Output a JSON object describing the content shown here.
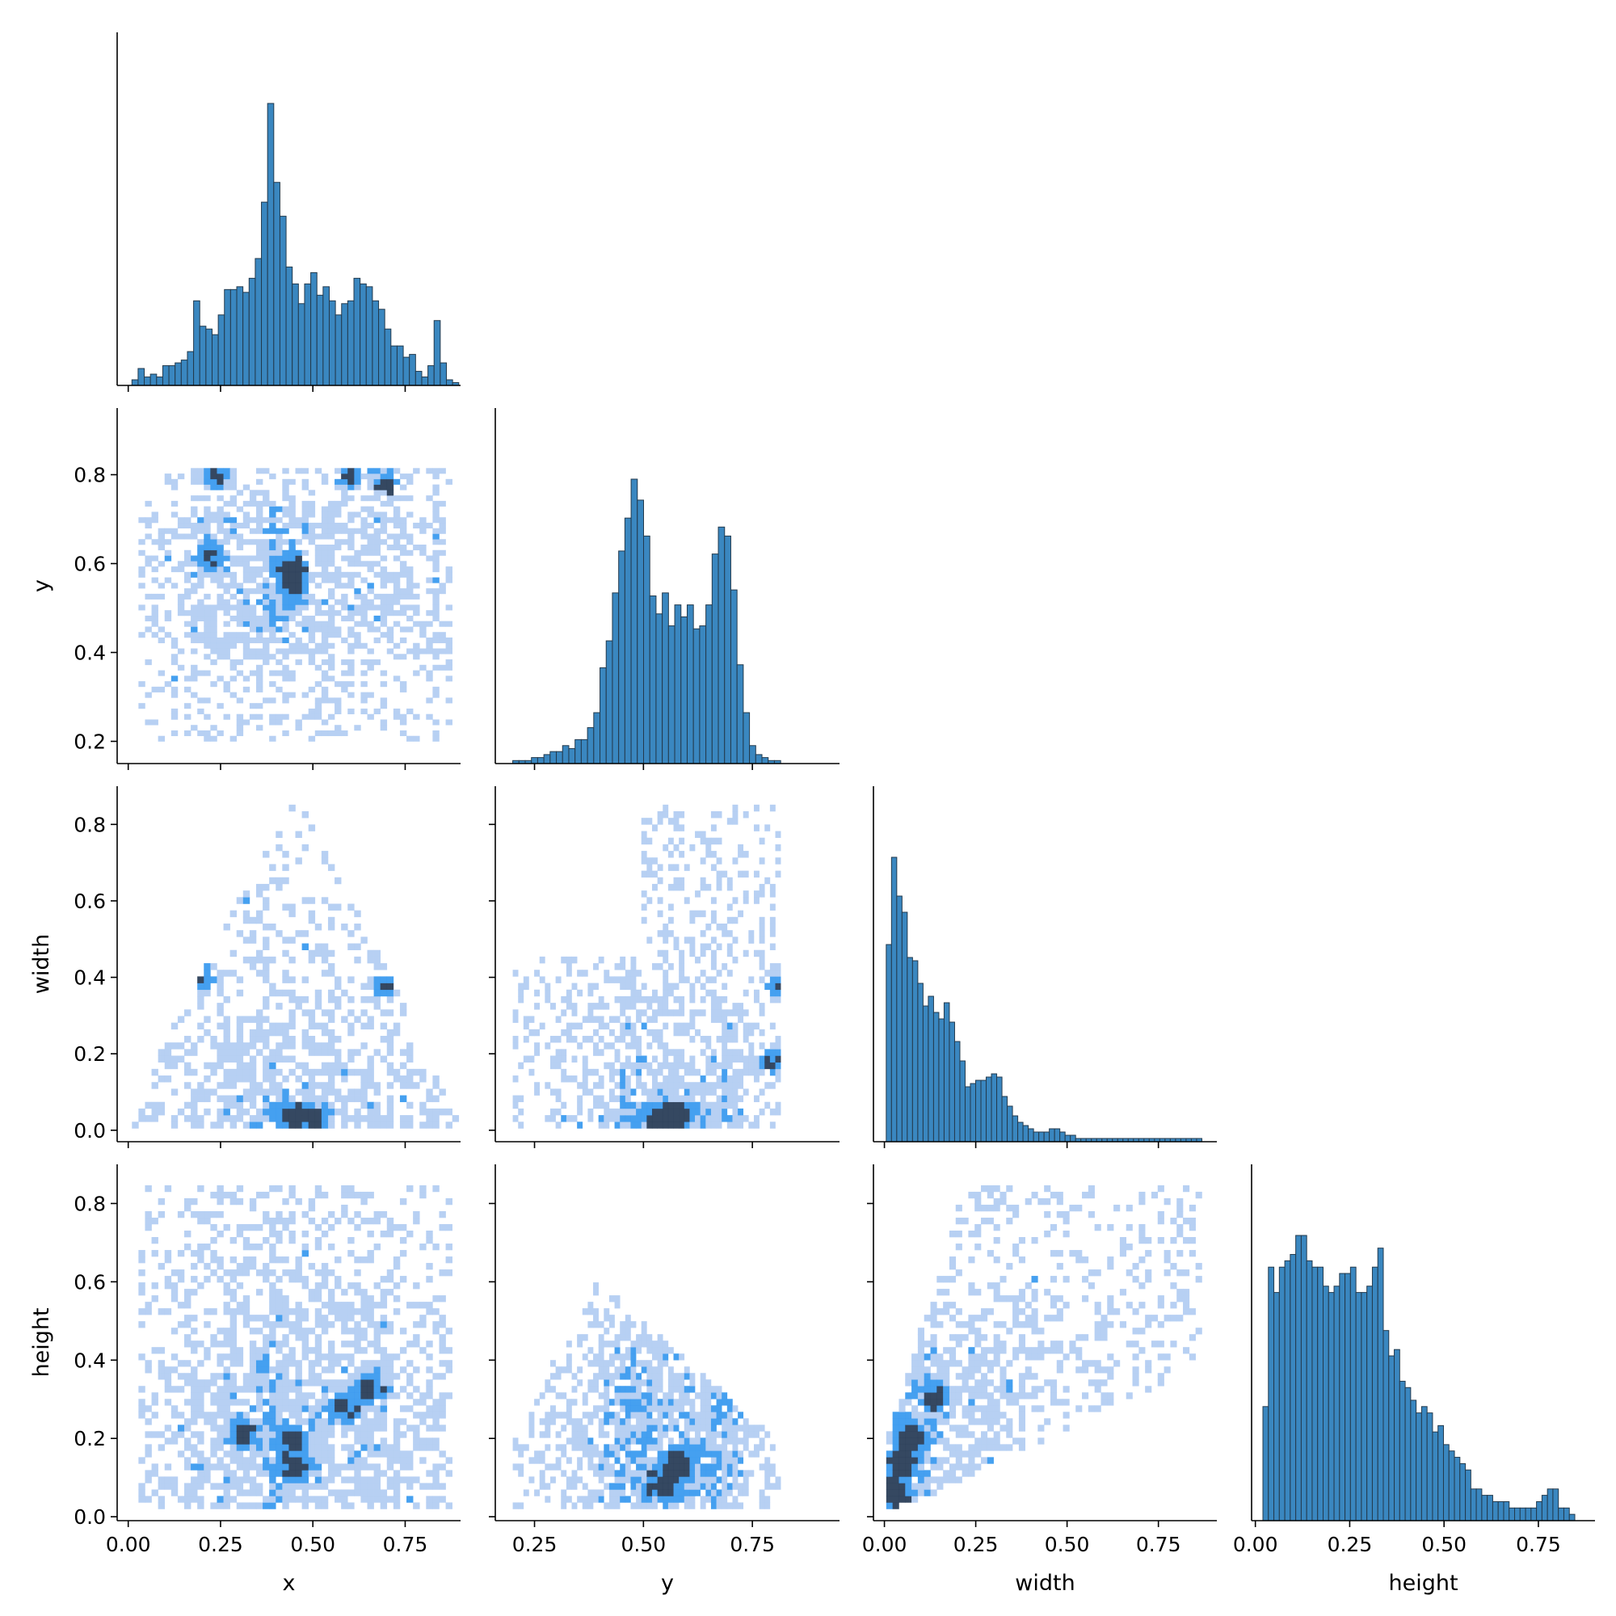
{
  "chart_data": {
    "type": "pairplot",
    "variables": [
      "x",
      "y",
      "width",
      "height"
    ],
    "corner": true,
    "diagonal": "histogram",
    "off_diagonal": "2d-histogram",
    "colors": {
      "hist_fill": "#3a87c0",
      "hist_edge": "#233a4d",
      "heat_low": "#b3cdf2",
      "heat_mid": "#3b9bef",
      "heat_high": "#2a3e58",
      "spine": "#000000"
    },
    "axes": {
      "x": {
        "label": "x",
        "lim": [
          -0.03,
          0.9
        ],
        "ticks": [
          0.0,
          0.25,
          0.5,
          0.75
        ],
        "tick_labels": [
          "0.00",
          "0.25",
          "0.50",
          "0.75"
        ]
      },
      "y": {
        "label": "y",
        "lim": [
          0.15,
          0.95
        ],
        "ticks": [
          0.2,
          0.4,
          0.6,
          0.8
        ],
        "tick_labels": [
          "0.2",
          "0.4",
          "0.6",
          "0.8"
        ],
        "x_ticks": [
          0.25,
          0.5,
          0.75
        ],
        "x_tick_labels": [
          "0.25",
          "0.50",
          "0.75"
        ],
        "x_lim": [
          0.16,
          0.95
        ]
      },
      "width": {
        "label": "width",
        "lim": [
          -0.03,
          0.9
        ],
        "ticks": [
          0.0,
          0.2,
          0.4,
          0.6,
          0.8
        ],
        "tick_labels": [
          "0.0",
          "0.2",
          "0.4",
          "0.6",
          "0.8"
        ],
        "x_ticks": [
          0.0,
          0.25,
          0.5,
          0.75
        ],
        "x_tick_labels": [
          "0.00",
          "0.25",
          "0.50",
          "0.75"
        ],
        "x_lim": [
          -0.03,
          0.91
        ]
      },
      "height": {
        "label": "height",
        "lim": [
          -0.01,
          0.9
        ],
        "ticks": [
          0.0,
          0.2,
          0.4,
          0.6,
          0.8
        ],
        "tick_labels": [
          "0.0",
          "0.2",
          "0.4",
          "0.6",
          "0.8"
        ],
        "x_ticks": [
          0.0,
          0.25,
          0.5,
          0.75
        ],
        "x_tick_labels": [
          "0.00",
          "0.25",
          "0.50",
          "0.75"
        ],
        "x_lim": [
          -0.01,
          0.9
        ]
      }
    },
    "histograms": {
      "x": {
        "bin_start": 0.01,
        "bin_width": 0.0167,
        "counts": [
          2,
          6,
          3,
          4,
          3,
          7,
          7,
          8,
          9,
          12,
          30,
          21,
          20,
          18,
          25,
          34,
          34,
          35,
          33,
          38,
          45,
          65,
          100,
          72,
          60,
          42,
          36,
          29,
          36,
          40,
          32,
          35,
          30,
          25,
          29,
          30,
          38,
          36,
          35,
          30,
          27,
          20,
          14,
          14,
          10,
          11,
          5,
          3,
          7,
          23,
          8,
          2,
          1
        ],
        "count_max": 100
      },
      "y": {
        "bin_start": 0.2,
        "bin_width": 0.0143,
        "counts": [
          1,
          1,
          1,
          2,
          2,
          3,
          4,
          4,
          6,
          5,
          8,
          8,
          12,
          17,
          32,
          41,
          57,
          71,
          82,
          95,
          88,
          76,
          56,
          50,
          57,
          46,
          53,
          49,
          53,
          45,
          46,
          53,
          70,
          79,
          76,
          58,
          33,
          17,
          6,
          3,
          2,
          1,
          1
        ],
        "count_max": 95
      },
      "width": {
        "bin_start": 0.005,
        "bin_width": 0.0144,
        "counts": [
          61,
          88,
          76,
          71,
          57,
          56,
          49,
          42,
          45,
          40,
          38,
          43,
          37,
          31,
          25,
          17,
          18,
          19,
          19,
          20,
          21,
          20,
          14,
          11,
          8,
          6,
          5,
          4,
          3,
          3,
          3,
          4,
          4,
          3,
          2,
          2,
          1,
          1,
          1,
          1,
          1,
          1,
          1,
          1,
          1,
          1,
          1,
          1,
          1,
          1,
          1,
          1,
          1,
          1,
          1,
          1,
          1,
          1,
          1,
          1
        ],
        "count_max": 88
      },
      "height": {
        "bin_start": 0.02,
        "bin_width": 0.0145,
        "counts": [
          18,
          40,
          36,
          40,
          41,
          42,
          45,
          45,
          41,
          40,
          40,
          37,
          36,
          37,
          39,
          39,
          40,
          36,
          36,
          37,
          40,
          43,
          30,
          26,
          27,
          22,
          21,
          19,
          17,
          18,
          17,
          14,
          15,
          12,
          11,
          10,
          9,
          8,
          5,
          5,
          4,
          4,
          3,
          3,
          3,
          2,
          2,
          2,
          2,
          2,
          3,
          4,
          5,
          5,
          2,
          2,
          1
        ],
        "count_max": 45
      }
    },
    "joint_hotspots": [
      {
        "x_var": "x",
        "y_var": "y",
        "points": [
          [
            0.45,
            0.55
          ],
          [
            0.44,
            0.6
          ],
          [
            0.6,
            0.8
          ],
          [
            0.7,
            0.78
          ],
          [
            0.24,
            0.8
          ],
          [
            0.22,
            0.62
          ]
        ]
      },
      {
        "x_var": "x",
        "y_var": "width",
        "points": [
          [
            0.45,
            0.04
          ],
          [
            0.5,
            0.03
          ],
          [
            0.7,
            0.38
          ],
          [
            0.2,
            0.4
          ]
        ]
      },
      {
        "x_var": "y",
        "y_var": "width",
        "points": [
          [
            0.55,
            0.02
          ],
          [
            0.58,
            0.04
          ],
          [
            0.8,
            0.18
          ],
          [
            0.82,
            0.38
          ]
        ]
      },
      {
        "x_var": "x",
        "y_var": "height",
        "points": [
          [
            0.45,
            0.12
          ],
          [
            0.45,
            0.2
          ],
          [
            0.58,
            0.28
          ],
          [
            0.65,
            0.33
          ],
          [
            0.31,
            0.22
          ]
        ]
      },
      {
        "x_var": "y",
        "y_var": "height",
        "points": [
          [
            0.55,
            0.08
          ],
          [
            0.58,
            0.14
          ],
          [
            0.77,
            0.32
          ],
          [
            0.8,
            0.25
          ]
        ]
      },
      {
        "x_var": "width",
        "y_var": "height",
        "points": [
          [
            0.02,
            0.06
          ],
          [
            0.05,
            0.14
          ],
          [
            0.08,
            0.2
          ],
          [
            0.14,
            0.3
          ]
        ]
      }
    ]
  }
}
